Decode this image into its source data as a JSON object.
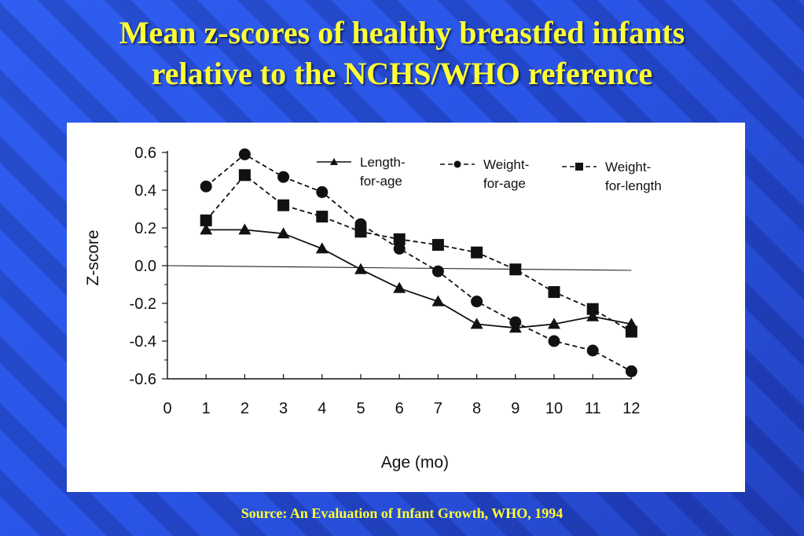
{
  "title": {
    "line1": "Mean z-scores of healthy breastfed infants",
    "line2": "relative to the NCHS/WHO reference"
  },
  "source": "Source: An Evaluation of Infant Growth, WHO, 1994",
  "colors": {
    "title": "#ffff33",
    "background": "#2a55e6",
    "panel": "#ffffff",
    "ink": "#111111"
  },
  "chart_data": {
    "type": "line",
    "title": "",
    "xlabel": "Age (mo)",
    "ylabel": "Z-score",
    "xlim": [
      0,
      12
    ],
    "ylim": [
      -0.6,
      0.6
    ],
    "x_ticks": [
      "0",
      "1",
      "2",
      "3",
      "4",
      "5",
      "6",
      "7",
      "8",
      "9",
      "10",
      "11",
      "12"
    ],
    "y_ticks": [
      "0.6",
      "0.4",
      "0.2",
      "0.0",
      "-0.2",
      "-0.4",
      "-0.6"
    ],
    "y_tick_values": [
      0.6,
      0.4,
      0.2,
      0.0,
      -0.2,
      -0.4,
      -0.6
    ],
    "reference_line": 0.0,
    "grid": false,
    "legend_position": "top-right",
    "series": [
      {
        "name_lines": [
          "Length-",
          "for-age"
        ],
        "marker": "triangle",
        "line": "solid",
        "x": [
          1,
          2,
          3,
          4,
          5,
          6,
          7,
          8,
          9,
          10,
          11,
          12
        ],
        "values": [
          0.19,
          0.19,
          0.17,
          0.09,
          -0.02,
          -0.12,
          -0.19,
          -0.31,
          -0.33,
          -0.31,
          -0.27,
          -0.31
        ]
      },
      {
        "name_lines": [
          "Weight-",
          "for-age"
        ],
        "marker": "circle",
        "line": "dashed",
        "x": [
          1,
          2,
          3,
          4,
          5,
          6,
          7,
          8,
          9,
          10,
          11,
          12
        ],
        "values": [
          0.42,
          0.59,
          0.47,
          0.39,
          0.22,
          0.09,
          -0.03,
          -0.19,
          -0.3,
          -0.4,
          -0.45,
          -0.56
        ]
      },
      {
        "name_lines": [
          "Weight-",
          "for-length"
        ],
        "marker": "square",
        "line": "dashed",
        "x": [
          1,
          2,
          3,
          4,
          5,
          6,
          7,
          8,
          9,
          10,
          11,
          12
        ],
        "values": [
          0.24,
          0.48,
          0.32,
          0.26,
          0.18,
          0.14,
          0.11,
          0.07,
          -0.02,
          -0.14,
          -0.23,
          -0.35
        ]
      }
    ]
  }
}
